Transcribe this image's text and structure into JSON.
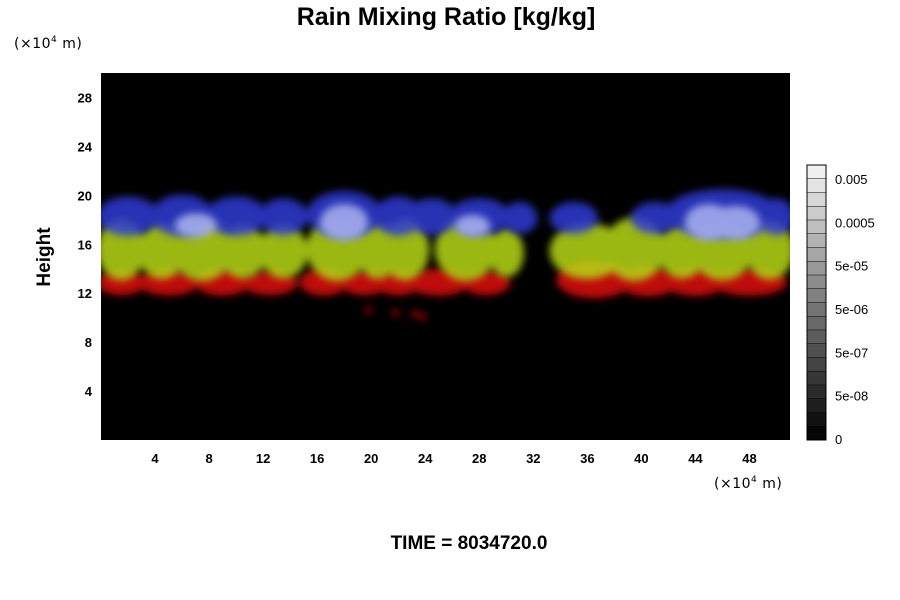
{
  "chart_data": {
    "type": "heatmap",
    "title": "Rain Mixing Ratio [kg/kg]",
    "ylabel": "Height",
    "xlabel": "",
    "x_unit": {
      "prefix": "(×10",
      "exp": "4",
      "suffix": " m)"
    },
    "y_unit": {
      "prefix": "(×10",
      "exp": "4",
      "suffix": " m)"
    },
    "xlim": [
      0,
      51
    ],
    "ylim": [
      0,
      30
    ],
    "x_ticks": [
      4,
      8,
      12,
      16,
      20,
      24,
      28,
      32,
      36,
      40,
      44,
      48
    ],
    "y_ticks": [
      4,
      8,
      12,
      16,
      20,
      24,
      28
    ],
    "background_color": "#000000",
    "colorbar": {
      "labels": [
        "0.005",
        "0.0005",
        "5e-05",
        "5e-06",
        "5e-07",
        "5e-08",
        "0"
      ],
      "level_count": 20,
      "min": 0,
      "max_label": "0.005"
    },
    "layers": [
      {
        "name": "low",
        "color": "#e01010",
        "opacity": 0.85,
        "y_center": 12.7,
        "thickness": 1.4,
        "blobs": [
          {
            "x": 1.5,
            "w": 3,
            "h": 0.6
          },
          {
            "x": 5,
            "w": 4,
            "h": 0.7
          },
          {
            "x": 9,
            "w": 3.5,
            "h": 0.8
          },
          {
            "x": 12.5,
            "w": 3.5,
            "h": 0.6
          },
          {
            "x": 16.5,
            "w": 3,
            "h": 0.8
          },
          {
            "x": 19.5,
            "w": 3,
            "h": 0.6
          },
          {
            "x": 22,
            "w": 3,
            "h": 0.6
          },
          {
            "x": 25,
            "w": 4,
            "h": 0.8
          },
          {
            "x": 28.5,
            "w": 3,
            "h": 0.6
          },
          {
            "x": 36.5,
            "w": 5,
            "h": 1.6
          },
          {
            "x": 40.5,
            "w": 4,
            "h": 1.0
          },
          {
            "x": 44,
            "w": 4,
            "h": 0.9
          },
          {
            "x": 48,
            "w": 5,
            "h": 0.8
          }
        ],
        "specks": [
          {
            "x": 19.8,
            "y": 10.6
          },
          {
            "x": 21.8,
            "y": 10.4
          },
          {
            "x": 23.2,
            "y": 10.3
          },
          {
            "x": 23.8,
            "y": 10.1
          }
        ]
      },
      {
        "name": "mid",
        "color": "#b7d812",
        "opacity": 0.85,
        "y_center": 14.9,
        "thickness": 2.4,
        "blobs": [
          {
            "x": 1.5,
            "w": 3,
            "h": 2.6
          },
          {
            "x": 4.5,
            "w": 3,
            "h": 2.2
          },
          {
            "x": 7.5,
            "w": 4,
            "h": 2.8
          },
          {
            "x": 10.5,
            "w": 3,
            "h": 2.0
          },
          {
            "x": 13.5,
            "w": 3,
            "h": 2.0
          },
          {
            "x": 17.5,
            "w": 4,
            "h": 2.8
          },
          {
            "x": 20.5,
            "w": 2.5,
            "h": 2.2
          },
          {
            "x": 22.5,
            "w": 3,
            "h": 2.6
          },
          {
            "x": 27,
            "w": 4,
            "h": 2.8
          },
          {
            "x": 30,
            "w": 2,
            "h": 1.6
          },
          {
            "x": 36,
            "w": 5,
            "h": 2.2
          },
          {
            "x": 39.5,
            "w": 4,
            "h": 2.8
          },
          {
            "x": 43,
            "w": 3,
            "h": 2.0
          },
          {
            "x": 46,
            "w": 4,
            "h": 2.6
          },
          {
            "x": 49.5,
            "w": 3,
            "h": 2.4
          }
        ],
        "specks": []
      },
      {
        "name": "upper",
        "color": "#2f3bd4",
        "opacity": 0.85,
        "y_center": 17.9,
        "thickness": 1.6,
        "blobs": [
          {
            "x": 2,
            "w": 4,
            "h": 1.6
          },
          {
            "x": 6,
            "w": 4,
            "h": 1.8
          },
          {
            "x": 10,
            "w": 4,
            "h": 1.6
          },
          {
            "x": 13.5,
            "w": 3,
            "h": 1.4
          },
          {
            "x": 18,
            "w": 5,
            "h": 2.2
          },
          {
            "x": 22,
            "w": 3,
            "h": 1.6
          },
          {
            "x": 24.5,
            "w": 3,
            "h": 1.4
          },
          {
            "x": 28,
            "w": 4,
            "h": 1.4
          },
          {
            "x": 31,
            "w": 2,
            "h": 1.0
          },
          {
            "x": 35,
            "w": 3,
            "h": 1.0
          },
          {
            "x": 41,
            "w": 3,
            "h": 1.0
          },
          {
            "x": 46,
            "w": 8,
            "h": 2.4
          },
          {
            "x": 50,
            "w": 2,
            "h": 1.4
          }
        ],
        "specks": []
      },
      {
        "name": "peak",
        "color": "#aab2f0",
        "opacity": 0.85,
        "y_center": 17.3,
        "thickness": 1.0,
        "blobs": [
          {
            "x": 7,
            "w": 2.5,
            "h": 1.0
          },
          {
            "x": 18,
            "w": 3,
            "h": 2.0
          },
          {
            "x": 27.5,
            "w": 2,
            "h": 0.8
          },
          {
            "x": 45,
            "w": 3,
            "h": 2.0
          },
          {
            "x": 47,
            "w": 3,
            "h": 1.8
          }
        ],
        "specks": []
      }
    ]
  },
  "footer": {
    "time_label": "TIME = 8034720.0"
  }
}
